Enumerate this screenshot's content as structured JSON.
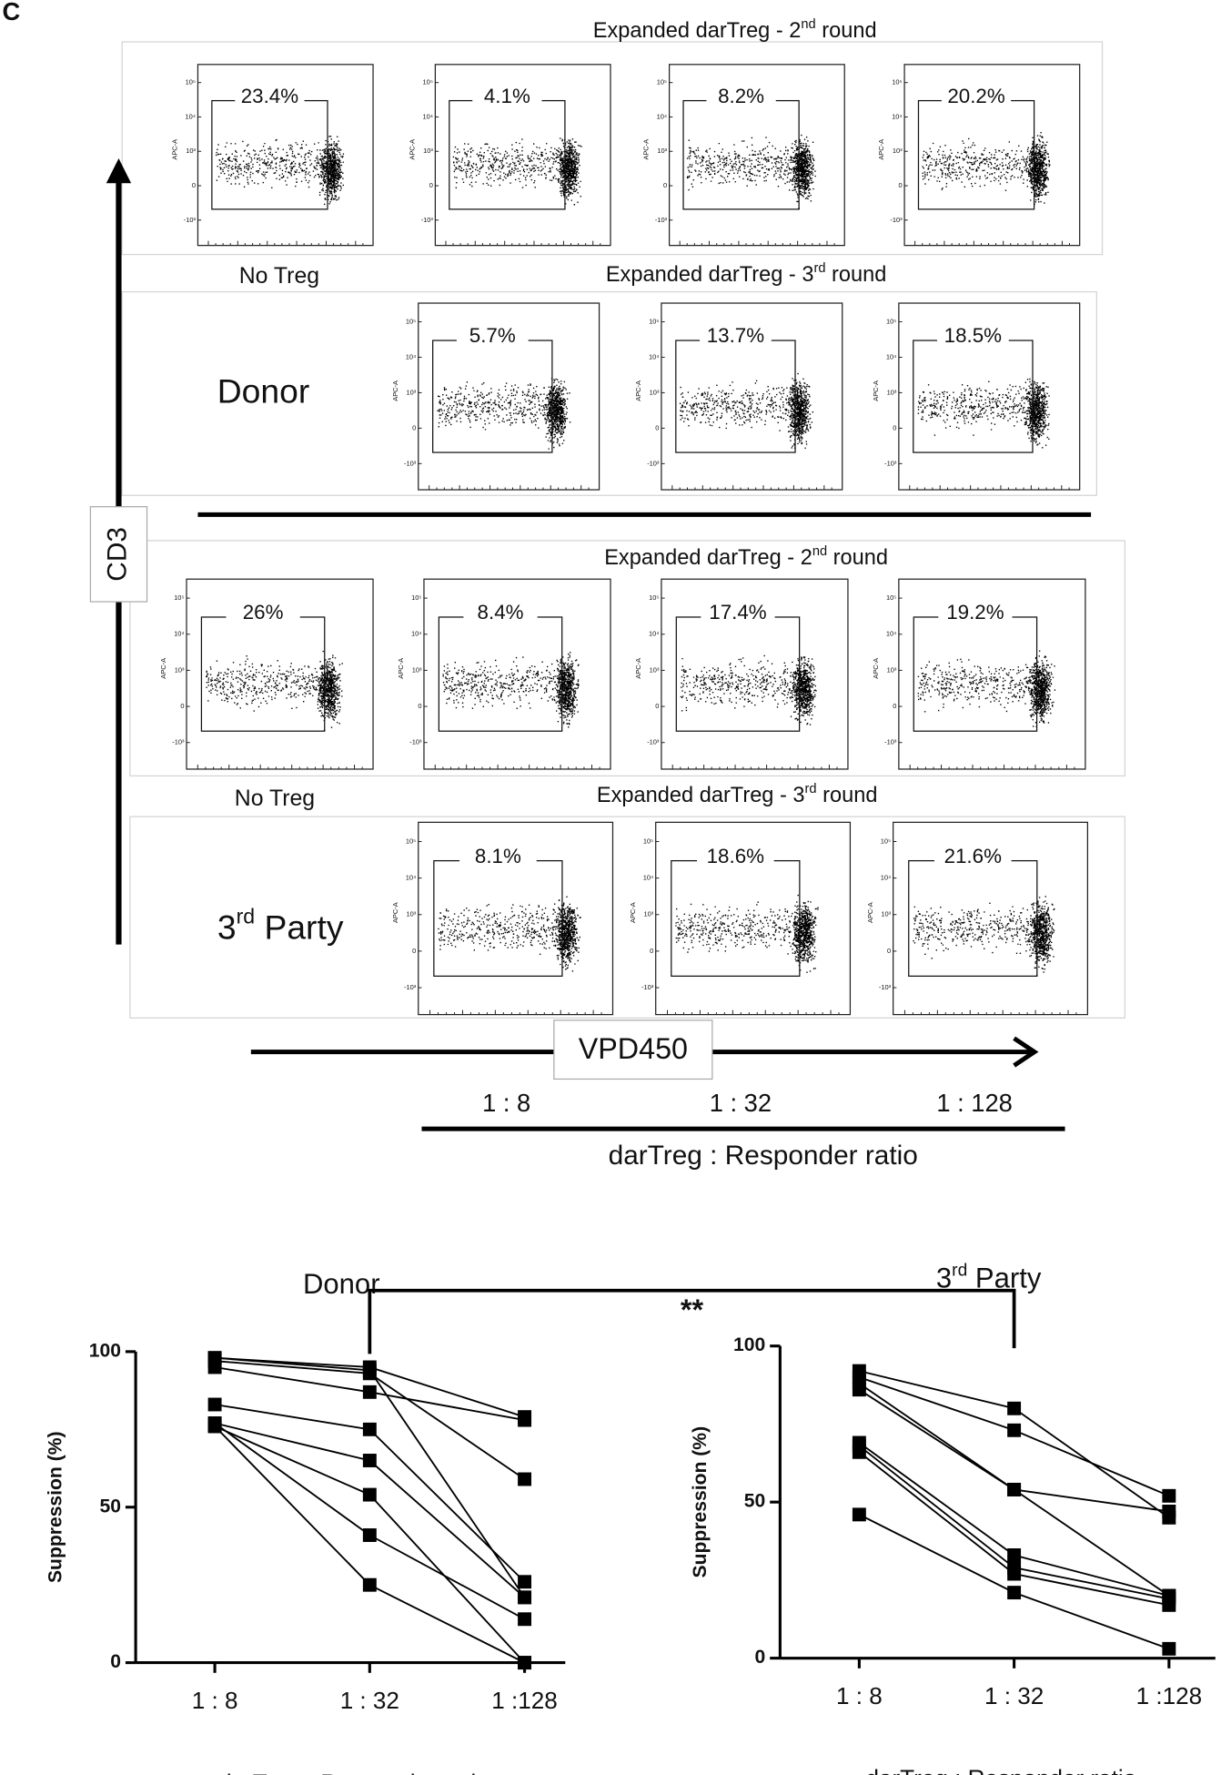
{
  "panel_label": "C",
  "flow": {
    "y_axis_title": "CD3",
    "x_axis_title": "VPD450",
    "plot_y_label": "APC-A",
    "plot_y_ticks": [
      "10⁵",
      "10⁴",
      "10³",
      "0",
      "-10³"
    ],
    "no_treg_label": "No Treg",
    "groups": [
      "Donor",
      [
        "3",
        "rd",
        " Party"
      ]
    ],
    "rows": [
      {
        "header": [
          "Expanded darTreg -  2",
          "nd",
          " round"
        ],
        "gates": [
          "23.4%",
          "4.1%",
          "8.2%",
          "20.2%"
        ]
      },
      {
        "header": [
          "Expanded darTreg -  3",
          "rd",
          " round"
        ],
        "gates": [
          "5.7%",
          "13.7%",
          "18.5%"
        ]
      },
      {
        "header": [
          "Expanded darTreg -  2",
          "nd",
          " round"
        ],
        "gates": [
          "26%",
          "8.4%",
          "17.4%",
          "19.2%"
        ]
      },
      {
        "header": [
          "Expanded darTreg -  3",
          "rd",
          " round"
        ],
        "gates": [
          "8.1%",
          "18.6%",
          "21.6%"
        ]
      }
    ],
    "ratio_labels": [
      "1 : 8",
      "1 : 32",
      "1 : 128"
    ],
    "ratio_title": "darTreg : Responder ratio"
  },
  "comparison": "**",
  "chart_data": [
    {
      "type": "line",
      "title": "Donor",
      "categories": [
        "1 : 8",
        "1 : 32",
        "1 :128"
      ],
      "color": "#000000",
      "ylim": [
        0,
        100
      ],
      "yticks": [
        0,
        50,
        100
      ],
      "y_label": "Suppression (%)",
      "x_label": "darTreg : Responder ratio",
      "series": [
        {
          "values": [
            98,
            95,
            79
          ]
        },
        {
          "values": [
            97,
            93,
            59
          ]
        },
        {
          "values": [
            95,
            87,
            78
          ]
        },
        {
          "values": [
            83,
            75,
            26
          ]
        },
        {
          "values": [
            77,
            65,
            21
          ]
        },
        {
          "values": [
            76,
            54,
            0
          ]
        },
        {
          "values": [
            77,
            41,
            14
          ]
        },
        {
          "values": [
            76,
            25,
            0
          ]
        },
        {
          "values": [
            98,
            94,
            21
          ]
        }
      ]
    },
    {
      "type": "line",
      "title": [
        "3",
        "rd",
        " Party"
      ],
      "categories": [
        "1 : 8",
        "1 : 32",
        "1 :128"
      ],
      "color": "#000000",
      "ylim": [
        0,
        100
      ],
      "yticks": [
        0,
        50,
        100
      ],
      "y_label": "Suppression (%)",
      "x_label": "darTreg : Responder ratio",
      "series": [
        {
          "values": [
            92,
            80,
            45
          ]
        },
        {
          "values": [
            90,
            73,
            52
          ]
        },
        {
          "values": [
            88,
            54,
            47
          ]
        },
        {
          "values": [
            86,
            54,
            20
          ]
        },
        {
          "values": [
            69,
            33,
            20
          ]
        },
        {
          "values": [
            68,
            29,
            19
          ]
        },
        {
          "values": [
            66,
            27,
            17
          ]
        },
        {
          "values": [
            46,
            21,
            3
          ]
        }
      ]
    }
  ]
}
